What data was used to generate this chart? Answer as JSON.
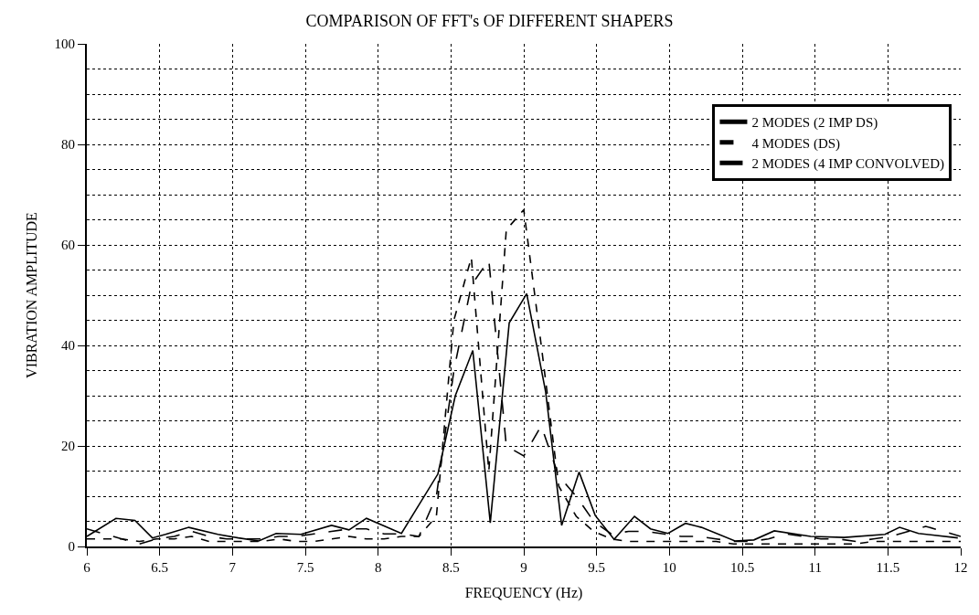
{
  "chart_data": {
    "type": "line",
    "title": "COMPARISON OF FFT's OF DIFFERENT SHAPERS",
    "xlabel": "FREQUENCY (Hz)",
    "ylabel": "VIBRATION AMPLITUDE",
    "xlim": [
      6,
      12
    ],
    "xticks": [
      6,
      6.5,
      7,
      7.5,
      8,
      8.5,
      9,
      9.5,
      10,
      10.5,
      11,
      11.5,
      12
    ],
    "ylim": [
      0,
      100
    ],
    "yticks": [
      0,
      20,
      40,
      60,
      80,
      100
    ],
    "grid": true,
    "legend": "top right",
    "series": [
      {
        "name": "2 MODES (2 IMP DS)",
        "color": "#000000",
        "line_style": "solid",
        "x": [
          6.0,
          6.2,
          6.33,
          6.45,
          6.54,
          6.7,
          6.9,
          7.04,
          7.18,
          7.3,
          7.47,
          7.68,
          7.8,
          7.92,
          8.16,
          8.41,
          8.53,
          8.65,
          8.77,
          8.9,
          9.02,
          9.15,
          9.26,
          9.38,
          9.49,
          9.62,
          9.76,
          9.87,
          9.99,
          10.11,
          10.22,
          10.45,
          10.58,
          10.72,
          10.97,
          11.2,
          11.48,
          11.58,
          11.71,
          11.98
        ],
        "values": [
          2,
          5.6,
          5.2,
          1.7,
          2.4,
          3.8,
          2.4,
          1.7,
          1.1,
          2.6,
          2.4,
          4.2,
          3.3,
          5.6,
          2.6,
          14.4,
          30,
          39,
          4.7,
          44.5,
          50.3,
          30.8,
          4.2,
          14.8,
          6.2,
          1.4,
          6,
          3.5,
          2.6,
          4.6,
          3.8,
          1.1,
          1.3,
          3.1,
          2,
          1.8,
          2.4,
          3.8,
          2.6,
          1.7
        ]
      },
      {
        "name": "4 MODES (DS)",
        "color": "#000000",
        "line_style": "dashed",
        "x": [
          6.0,
          6.12,
          6.24,
          6.36,
          6.48,
          6.6,
          6.72,
          6.84,
          6.96,
          7.08,
          7.2,
          7.32,
          7.44,
          7.56,
          7.68,
          7.8,
          7.92,
          8.04,
          8.16,
          8.28,
          8.4,
          8.52,
          8.64,
          8.76,
          8.88,
          9.0,
          9.12,
          9.24,
          9.36,
          9.48,
          9.6,
          9.72,
          9.84,
          9.96,
          10.08,
          10.2,
          10.32,
          10.44,
          10.56,
          10.68,
          10.8,
          10.92,
          11.04,
          11.16,
          11.28,
          11.4,
          11.52,
          11.64,
          11.76,
          11.88,
          12.0
        ],
        "values": [
          1.5,
          1.5,
          1.5,
          1,
          1.5,
          1.5,
          2,
          1,
          1,
          1,
          1,
          1.5,
          1,
          1,
          1.5,
          2,
          1.5,
          1.5,
          2,
          2,
          6,
          45,
          57.5,
          15,
          63,
          67,
          40,
          12,
          6,
          3,
          1.5,
          1,
          1,
          1,
          1,
          1,
          1,
          0.5,
          0.5,
          0.5,
          0.5,
          0.5,
          0.5,
          0.5,
          0.5,
          1,
          1,
          1,
          1,
          1,
          1
        ]
      },
      {
        "name": "2 MODES (4 IMP CONVOLVED)",
        "color": "#000000",
        "line_style": "dashed",
        "x": [
          6.0,
          6.12,
          6.24,
          6.36,
          6.48,
          6.6,
          6.72,
          6.84,
          6.96,
          7.08,
          7.2,
          7.32,
          7.44,
          7.56,
          7.68,
          7.8,
          7.92,
          8.04,
          8.16,
          8.28,
          8.4,
          8.52,
          8.64,
          8.76,
          8.88,
          9.0,
          9.12,
          9.24,
          9.36,
          9.48,
          9.6,
          9.72,
          9.84,
          9.96,
          10.08,
          10.2,
          10.32,
          10.44,
          10.56,
          10.68,
          10.8,
          10.92,
          11.04,
          11.16,
          11.28,
          11.4,
          11.52,
          11.64,
          11.76,
          11.88,
          12.0
        ],
        "values": [
          3.5,
          2.5,
          1.5,
          0.5,
          1.5,
          2,
          3,
          2,
          1.5,
          1.5,
          1.5,
          2,
          2,
          2.5,
          3,
          3.5,
          3.5,
          2.5,
          2.5,
          2,
          10,
          35,
          52,
          57,
          20,
          18,
          24,
          14,
          10,
          5,
          2.5,
          3,
          3,
          2.5,
          2,
          2,
          1.5,
          1,
          1,
          1.5,
          2.5,
          2,
          1.5,
          1.5,
          1,
          1.5,
          2,
          3,
          4,
          3,
          2
        ]
      }
    ]
  }
}
